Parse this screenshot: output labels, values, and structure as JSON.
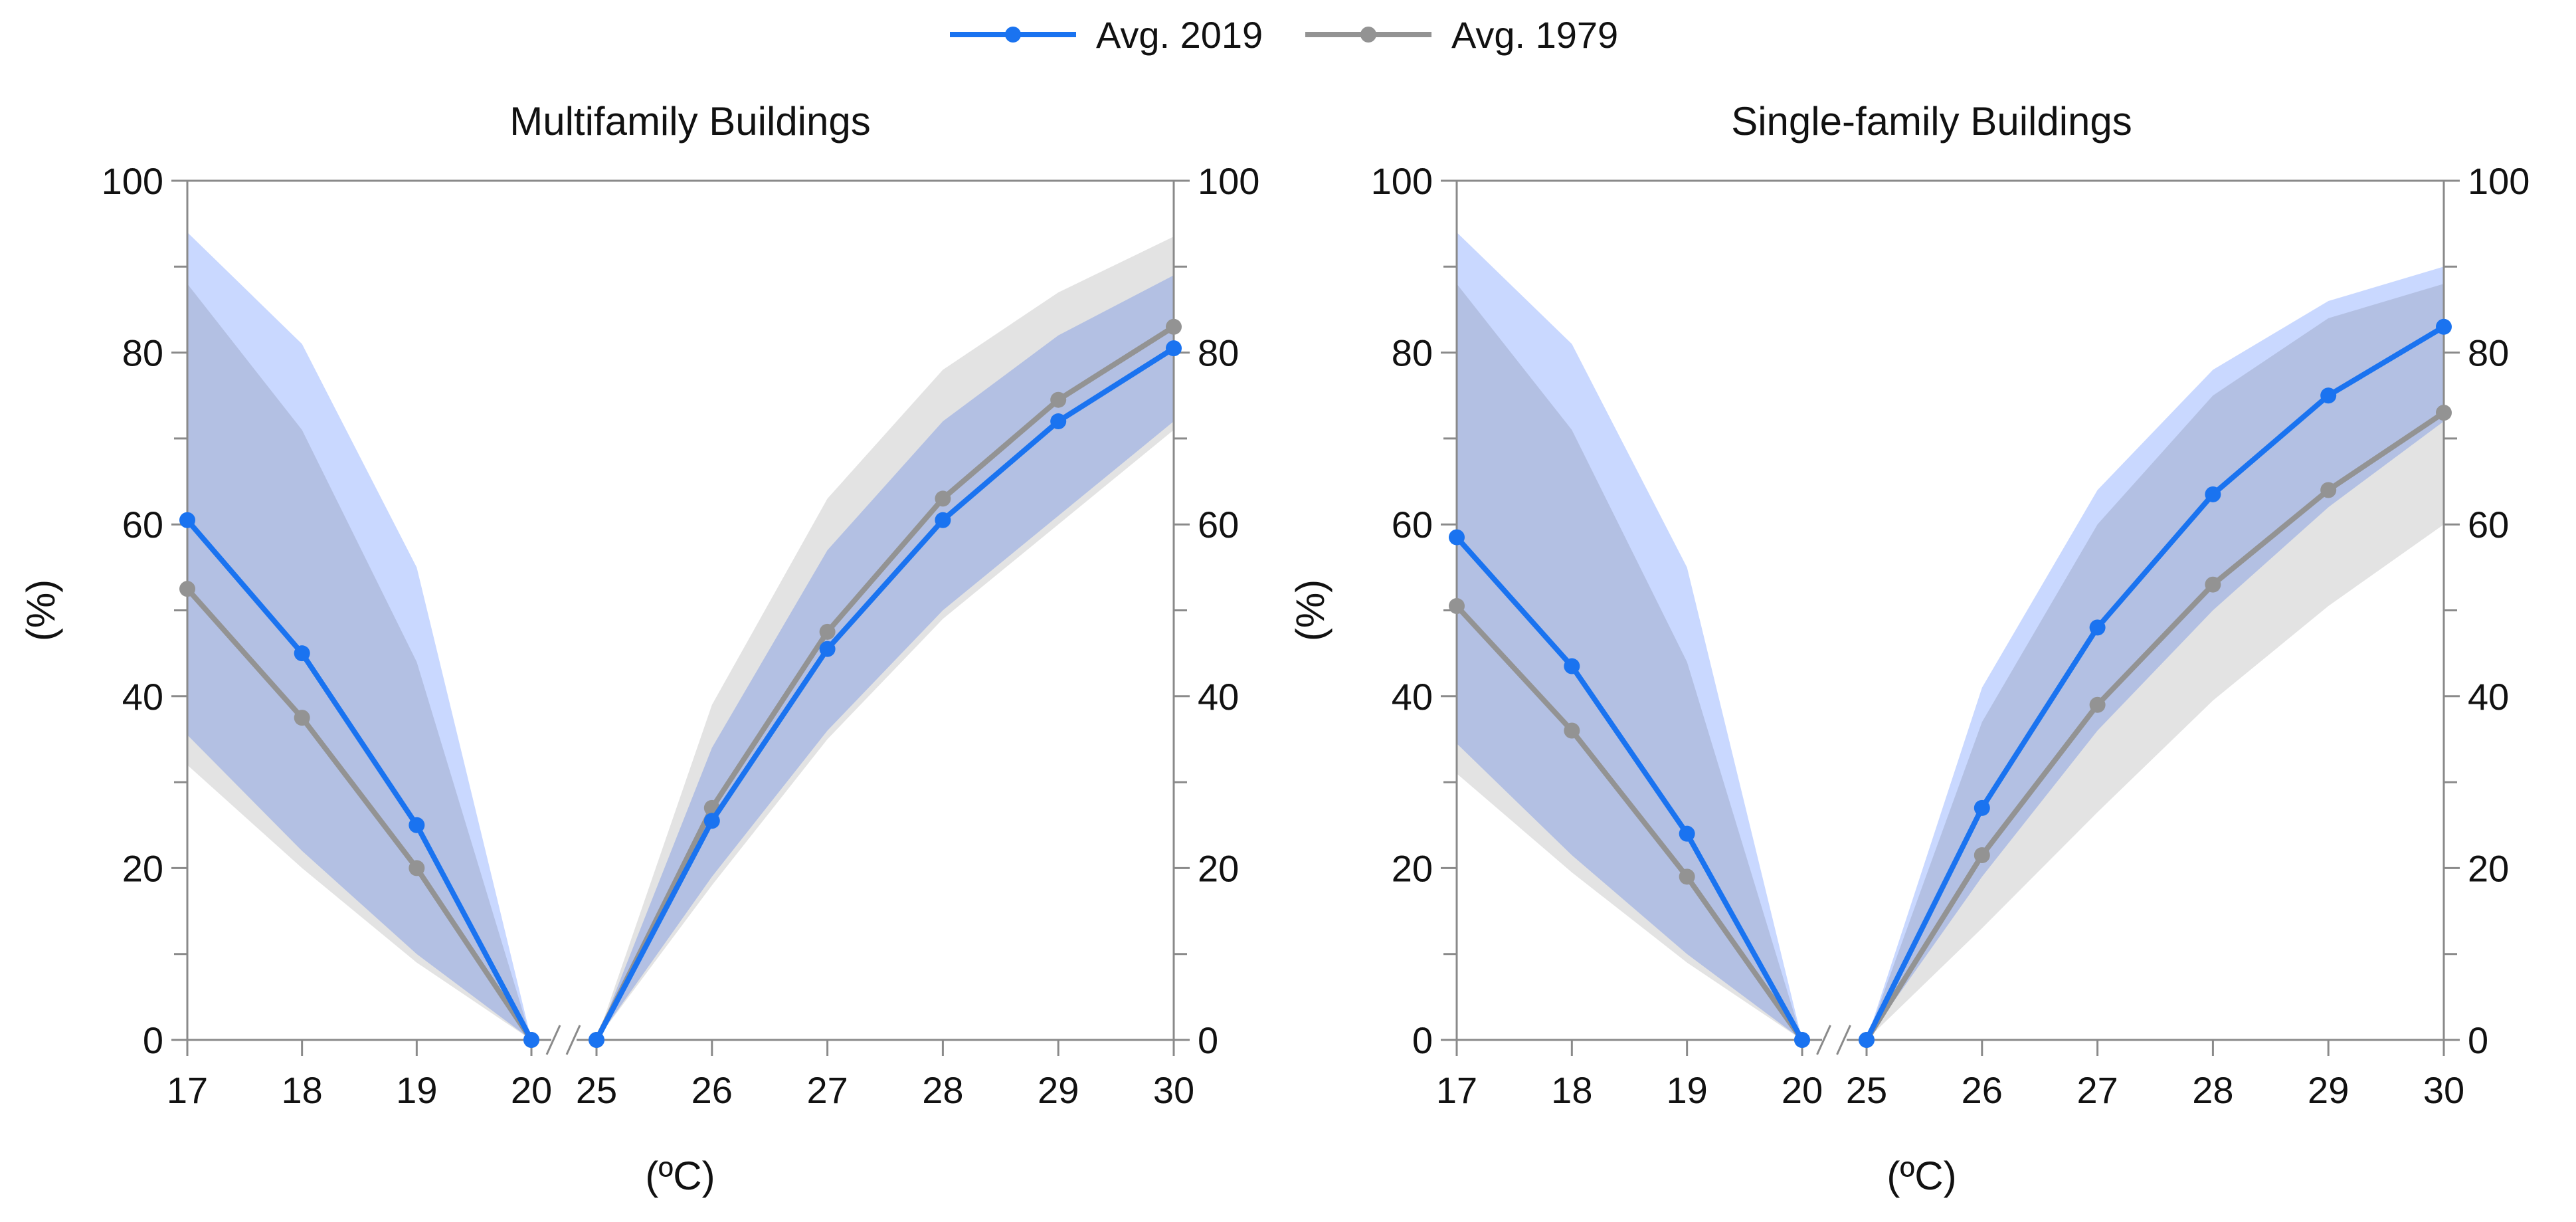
{
  "legend": [
    {
      "label": "Avg. 2019",
      "color": "#1a73f0"
    },
    {
      "label": "Avg. 1979",
      "color": "#939393"
    }
  ],
  "band_colors": {
    "2019": "#c9d8ff",
    "1979": "#e3e3e3",
    "overlap": "#c1c9e7"
  },
  "chart_data": [
    {
      "type": "line",
      "title": "Multifamily Buildings",
      "xlabel": "(ºC)",
      "ylabel": "(%)",
      "ylim": [
        0,
        100
      ],
      "yticks": [
        0,
        20,
        40,
        60,
        80,
        100
      ],
      "x_left": [
        17,
        18,
        19,
        20
      ],
      "x_right": [
        25,
        26,
        27,
        28,
        29,
        30
      ],
      "series": [
        {
          "name": "Avg. 2019",
          "left": [
            60.5,
            45,
            25,
            0
          ],
          "right": [
            0,
            25.5,
            45.5,
            60.5,
            72,
            80.5
          ],
          "band_left_upper": [
            94,
            81,
            55,
            0
          ],
          "band_left_lower": [
            35.5,
            22,
            10,
            0
          ],
          "band_right_upper": [
            0,
            34,
            57,
            72,
            82,
            89
          ],
          "band_right_lower": [
            0,
            19,
            36,
            50,
            61,
            72
          ]
        },
        {
          "name": "Avg. 1979",
          "left": [
            52.5,
            37.5,
            20,
            0
          ],
          "right": [
            0,
            27,
            47.5,
            63,
            74.5,
            83
          ],
          "band_left_upper": [
            88,
            71,
            44,
            0
          ],
          "band_left_lower": [
            32,
            20,
            9,
            0
          ],
          "band_right_upper": [
            0,
            39,
            63,
            78,
            87,
            93.5
          ],
          "band_right_lower": [
            0,
            18,
            35,
            49,
            60,
            71
          ]
        }
      ]
    },
    {
      "type": "line",
      "title": "Single-family Buildings",
      "xlabel": "(ºC)",
      "ylabel": "(%)",
      "ylim": [
        0,
        100
      ],
      "yticks": [
        0,
        20,
        40,
        60,
        80,
        100
      ],
      "x_left": [
        17,
        18,
        19,
        20
      ],
      "x_right": [
        25,
        26,
        27,
        28,
        29,
        30
      ],
      "series": [
        {
          "name": "Avg. 2019",
          "left": [
            58.5,
            43.5,
            24,
            0
          ],
          "right": [
            0,
            27,
            48,
            63.5,
            75,
            83
          ],
          "band_left_upper": [
            94,
            81,
            55,
            0
          ],
          "band_left_lower": [
            34.5,
            21.5,
            10,
            0
          ],
          "band_right_upper": [
            0,
            41,
            64,
            78,
            86,
            90
          ],
          "band_right_lower": [
            0,
            19,
            36,
            50,
            62,
            72
          ]
        },
        {
          "name": "Avg. 1979",
          "left": [
            50.5,
            36,
            19,
            0
          ],
          "right": [
            0,
            21.5,
            39,
            53,
            64,
            73
          ],
          "band_left_upper": [
            88,
            71,
            44,
            0
          ],
          "band_left_lower": [
            31,
            19.5,
            9,
            0
          ],
          "band_right_upper": [
            0,
            37,
            60,
            75,
            84,
            88
          ],
          "band_right_lower": [
            0,
            13,
            26.5,
            39.5,
            50.5,
            60
          ]
        }
      ]
    }
  ]
}
